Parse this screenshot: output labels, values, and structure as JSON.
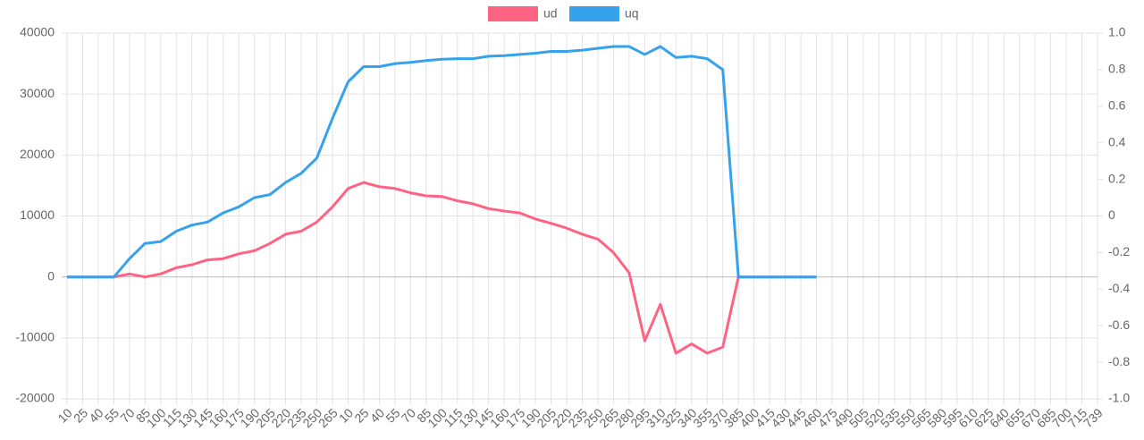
{
  "chart_data": {
    "type": "line",
    "categories": [
      "10",
      "25",
      "40",
      "55",
      "70",
      "85",
      "100",
      "115",
      "130",
      "145",
      "160",
      "175",
      "190",
      "205",
      "220",
      "235",
      "250",
      "265",
      "10",
      "25",
      "40",
      "55",
      "70",
      "85",
      "100",
      "115",
      "130",
      "145",
      "160",
      "175",
      "190",
      "205",
      "220",
      "235",
      "250",
      "265",
      "280",
      "295",
      "310",
      "325",
      "340",
      "355",
      "370",
      "385",
      "400",
      "415",
      "430",
      "445",
      "460",
      "475",
      "490",
      "505",
      "520",
      "535",
      "550",
      "565",
      "580",
      "595",
      "610",
      "625",
      "640",
      "655",
      "670",
      "685",
      "700",
      "715",
      "739"
    ],
    "series": [
      {
        "name": "ud",
        "color": "#ff6384",
        "values": [
          0,
          0,
          0,
          0,
          500,
          0,
          500,
          1500,
          2000,
          2800,
          3000,
          3800,
          4300,
          5500,
          7000,
          7500,
          9000,
          11500,
          14500,
          15500,
          14800,
          14500,
          13800,
          13300,
          13200,
          12500,
          12000,
          11200,
          10800,
          10500,
          9500,
          8800,
          8000,
          7000,
          6200,
          4000,
          700,
          -10500,
          -4500,
          -12500,
          -11000,
          -12500,
          -11500,
          0,
          0,
          0,
          0,
          0,
          0,
          null,
          null,
          null,
          null,
          null,
          null,
          null,
          null,
          null,
          null,
          null,
          null,
          null,
          null,
          null,
          null,
          null,
          null
        ]
      },
      {
        "name": "uq",
        "color": "#36a2eb",
        "values": [
          0,
          0,
          0,
          0,
          3000,
          5500,
          5800,
          7500,
          8500,
          9000,
          10500,
          11500,
          13000,
          13500,
          15500,
          17000,
          19500,
          26000,
          32000,
          34500,
          34500,
          35000,
          35200,
          35500,
          35700,
          35800,
          35800,
          36200,
          36300,
          36500,
          36700,
          37000,
          37000,
          37200,
          37500,
          37800,
          37800,
          36500,
          37800,
          36000,
          36200,
          35800,
          34000,
          0,
          0,
          0,
          0,
          0,
          0,
          null,
          null,
          null,
          null,
          null,
          null,
          null,
          null,
          null,
          null,
          null,
          null,
          null,
          null,
          null,
          null,
          null,
          null
        ]
      }
    ],
    "ylim": [
      -20000,
      40000
    ],
    "yticks": [
      -20000,
      -10000,
      0,
      10000,
      20000,
      30000,
      40000
    ],
    "y2lim": [
      -1,
      1
    ],
    "y2ticks": [
      {
        "value": -1,
        "label": "-1.0"
      },
      -0.8,
      -0.6,
      -0.4,
      -0.2,
      0,
      0.2,
      0.4,
      0.6,
      0.8,
      {
        "value": 1,
        "label": "1.0"
      }
    ],
    "grid": true,
    "legend": "top"
  }
}
